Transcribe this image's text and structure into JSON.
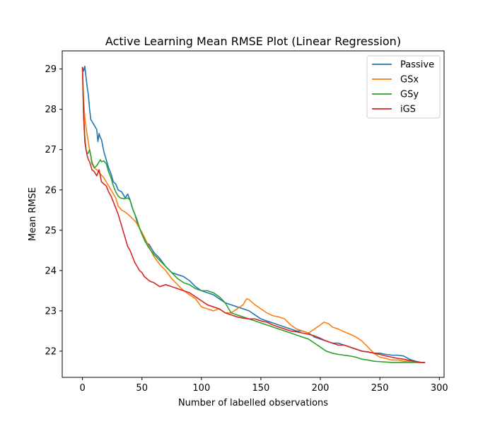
{
  "chart_data": {
    "type": "line",
    "title": "Active Learning Mean RMSE Plot (Linear Regression)",
    "xlabel": "Number of labelled observations",
    "ylabel": "Mean RMSE",
    "xlim": [
      -17,
      304
    ],
    "ylim": [
      21.35,
      29.45
    ],
    "xticks": [
      0,
      50,
      100,
      150,
      200,
      250,
      300
    ],
    "yticks": [
      22,
      23,
      24,
      25,
      26,
      27,
      28,
      29
    ],
    "grid": false,
    "legend_position": "top-right",
    "series": [
      {
        "name": "Passive",
        "color": "#1f77b4",
        "x": [
          0,
          1,
          2,
          3,
          4,
          5,
          6,
          7,
          8,
          10,
          12,
          13,
          14,
          15,
          16,
          18,
          20,
          22,
          24,
          26,
          28,
          30,
          33,
          36,
          38,
          40,
          42,
          44,
          46,
          48,
          50,
          53,
          56,
          60,
          65,
          70,
          75,
          80,
          85,
          90,
          95,
          100,
          105,
          110,
          115,
          120,
          125,
          130,
          135,
          140,
          145,
          150,
          155,
          160,
          165,
          170,
          175,
          180,
          185,
          190,
          195,
          200,
          205,
          210,
          215,
          220,
          225,
          230,
          235,
          240,
          245,
          250,
          255,
          260,
          265,
          270,
          275,
          280,
          285,
          288
        ],
        "y": [
          29.05,
          28.95,
          29.07,
          28.8,
          28.55,
          28.35,
          28.0,
          27.75,
          27.7,
          27.6,
          27.5,
          27.2,
          27.4,
          27.3,
          27.25,
          26.95,
          26.75,
          26.55,
          26.4,
          26.2,
          26.15,
          26.0,
          25.95,
          25.8,
          25.9,
          25.75,
          25.55,
          25.4,
          25.2,
          25.05,
          24.9,
          24.7,
          24.65,
          24.45,
          24.3,
          24.1,
          23.95,
          23.9,
          23.85,
          23.75,
          23.6,
          23.5,
          23.45,
          23.4,
          23.3,
          23.2,
          23.15,
          23.1,
          23.05,
          23.0,
          22.9,
          22.8,
          22.75,
          22.7,
          22.65,
          22.6,
          22.55,
          22.5,
          22.5,
          22.45,
          22.35,
          22.3,
          22.25,
          22.2,
          22.2,
          22.15,
          22.1,
          22.05,
          22.0,
          21.98,
          21.95,
          21.95,
          21.92,
          21.9,
          21.9,
          21.88,
          21.8,
          21.75,
          21.72,
          21.72
        ]
      },
      {
        "name": "GSx",
        "color": "#ff7f0e",
        "x": [
          0,
          1,
          2,
          3,
          4,
          6,
          8,
          10,
          12,
          15,
          18,
          20,
          22,
          25,
          28,
          30,
          33,
          36,
          40,
          45,
          50,
          55,
          60,
          65,
          70,
          75,
          80,
          85,
          90,
          95,
          100,
          105,
          110,
          115,
          120,
          125,
          130,
          135,
          138,
          140,
          145,
          150,
          155,
          160,
          165,
          170,
          175,
          180,
          185,
          190,
          195,
          200,
          203,
          207,
          210,
          215,
          220,
          225,
          230,
          235,
          240,
          245,
          250,
          255,
          260,
          265,
          270,
          275,
          280,
          285,
          288
        ],
        "y": [
          29.05,
          28.2,
          27.8,
          27.55,
          27.35,
          27.0,
          26.7,
          26.55,
          26.5,
          26.4,
          26.3,
          26.2,
          26.1,
          25.95,
          25.8,
          25.6,
          25.5,
          25.45,
          25.35,
          25.2,
          24.95,
          24.65,
          24.35,
          24.15,
          24.0,
          23.8,
          23.65,
          23.5,
          23.4,
          23.3,
          23.1,
          23.05,
          23.0,
          23.05,
          22.95,
          22.95,
          23.05,
          23.15,
          23.3,
          23.28,
          23.15,
          23.05,
          22.95,
          22.88,
          22.85,
          22.8,
          22.65,
          22.55,
          22.5,
          22.45,
          22.55,
          22.65,
          22.72,
          22.68,
          22.6,
          22.55,
          22.48,
          22.42,
          22.35,
          22.25,
          22.1,
          21.95,
          21.85,
          21.82,
          21.78,
          21.78,
          21.75,
          21.75,
          21.73,
          21.72,
          21.72
        ]
      },
      {
        "name": "GSy",
        "color": "#2ca02c",
        "x": [
          0,
          1,
          2,
          3,
          4,
          5,
          6,
          7,
          8,
          10,
          12,
          14,
          15,
          16,
          18,
          20,
          22,
          24,
          26,
          28,
          30,
          32,
          35,
          38,
          40,
          42,
          44,
          46,
          48,
          50,
          55,
          60,
          65,
          70,
          75,
          80,
          85,
          90,
          95,
          100,
          105,
          110,
          115,
          120,
          125,
          130,
          135,
          140,
          145,
          150,
          155,
          160,
          165,
          170,
          175,
          180,
          185,
          190,
          195,
          200,
          205,
          210,
          215,
          220,
          225,
          230,
          235,
          240,
          245,
          250,
          255,
          260,
          265,
          270,
          275,
          280,
          285,
          288
        ],
        "y": [
          29.05,
          27.9,
          27.3,
          27.0,
          26.9,
          26.92,
          27.0,
          26.85,
          26.65,
          26.55,
          26.6,
          26.7,
          26.75,
          26.7,
          26.72,
          26.65,
          26.45,
          26.3,
          26.1,
          25.95,
          25.85,
          25.8,
          25.78,
          25.8,
          25.75,
          25.55,
          25.4,
          25.25,
          25.05,
          24.9,
          24.6,
          24.4,
          24.25,
          24.1,
          23.95,
          23.8,
          23.7,
          23.65,
          23.55,
          23.5,
          23.5,
          23.45,
          23.35,
          23.2,
          22.95,
          22.9,
          22.85,
          22.8,
          22.75,
          22.7,
          22.65,
          22.6,
          22.55,
          22.5,
          22.45,
          22.4,
          22.35,
          22.3,
          22.2,
          22.1,
          22.0,
          21.95,
          21.92,
          21.9,
          21.88,
          21.85,
          21.8,
          21.78,
          21.75,
          21.74,
          21.73,
          21.72,
          21.72,
          21.72,
          21.72,
          21.72,
          21.72,
          21.72
        ]
      },
      {
        "name": "iGS",
        "color": "#d62728",
        "x": [
          0,
          1,
          2,
          3,
          4,
          5,
          6,
          7,
          8,
          10,
          12,
          14,
          16,
          18,
          20,
          22,
          24,
          26,
          28,
          30,
          32,
          34,
          36,
          38,
          40,
          42,
          44,
          46,
          48,
          50,
          52,
          54,
          56,
          58,
          60,
          65,
          70,
          75,
          80,
          85,
          90,
          95,
          100,
          105,
          110,
          115,
          120,
          125,
          130,
          135,
          140,
          145,
          150,
          155,
          160,
          165,
          170,
          175,
          180,
          185,
          190,
          195,
          200,
          205,
          210,
          215,
          220,
          225,
          230,
          235,
          240,
          245,
          250,
          255,
          260,
          265,
          270,
          275,
          280,
          285,
          288
        ],
        "y": [
          29.05,
          27.8,
          27.2,
          27.0,
          26.85,
          26.75,
          26.7,
          26.6,
          26.5,
          26.45,
          26.35,
          26.5,
          26.2,
          26.15,
          26.1,
          25.95,
          25.85,
          25.7,
          25.55,
          25.4,
          25.2,
          25.0,
          24.8,
          24.6,
          24.5,
          24.35,
          24.2,
          24.1,
          24.0,
          23.95,
          23.85,
          23.8,
          23.75,
          23.72,
          23.7,
          23.6,
          23.65,
          23.6,
          23.55,
          23.5,
          23.45,
          23.35,
          23.25,
          23.15,
          23.1,
          23.05,
          22.95,
          22.9,
          22.85,
          22.82,
          22.8,
          22.8,
          22.75,
          22.72,
          22.65,
          22.6,
          22.55,
          22.5,
          22.48,
          22.45,
          22.42,
          22.38,
          22.32,
          22.25,
          22.2,
          22.15,
          22.15,
          22.1,
          22.05,
          22.0,
          21.98,
          21.95,
          21.92,
          21.88,
          21.85,
          21.82,
          21.8,
          21.77,
          21.74,
          21.72,
          21.72
        ]
      }
    ]
  }
}
